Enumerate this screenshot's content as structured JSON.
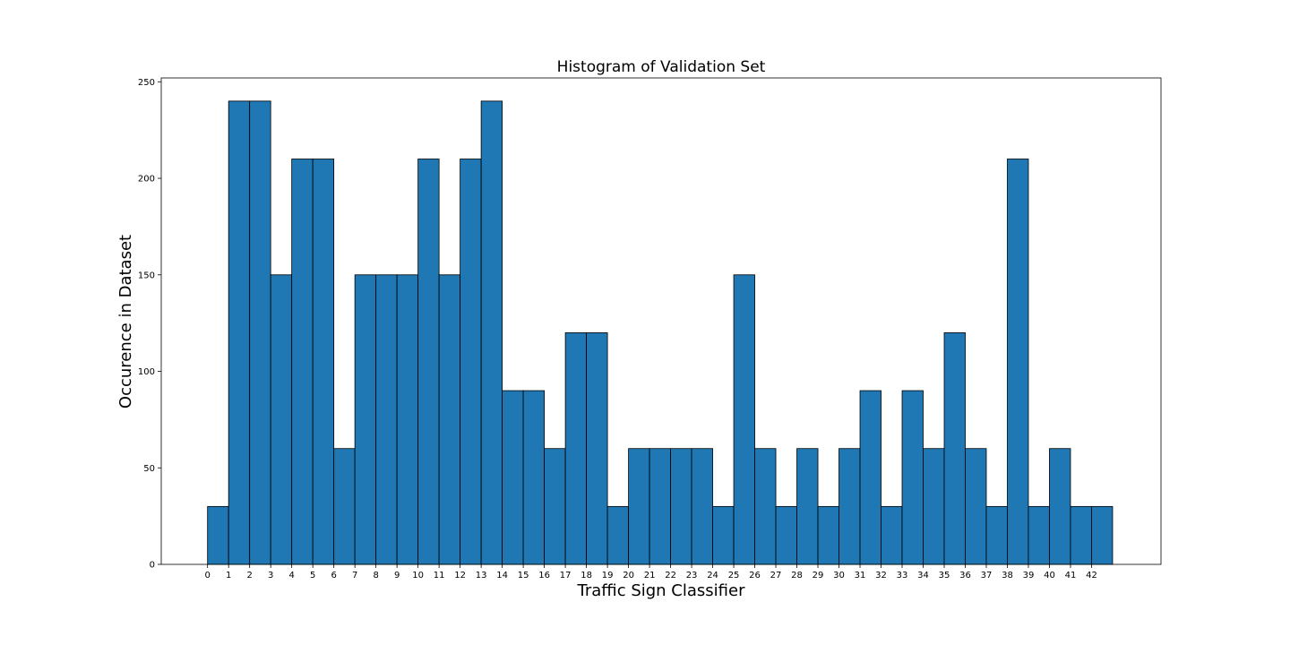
{
  "chart_data": {
    "type": "bar",
    "title": "Histogram of Validation Set",
    "xlabel": "Traffic Sign Classifier",
    "ylabel": "Occurence in Dataset",
    "categories": [
      "0",
      "1",
      "2",
      "3",
      "4",
      "5",
      "6",
      "7",
      "8",
      "9",
      "10",
      "11",
      "12",
      "13",
      "14",
      "15",
      "16",
      "17",
      "18",
      "19",
      "20",
      "21",
      "22",
      "23",
      "24",
      "25",
      "26",
      "27",
      "28",
      "29",
      "30",
      "31",
      "32",
      "33",
      "34",
      "35",
      "36",
      "37",
      "38",
      "39",
      "40",
      "41",
      "42"
    ],
    "values": [
      30,
      240,
      240,
      150,
      210,
      210,
      60,
      150,
      150,
      150,
      210,
      150,
      210,
      240,
      90,
      90,
      60,
      120,
      120,
      30,
      60,
      60,
      60,
      60,
      30,
      150,
      60,
      30,
      60,
      30,
      60,
      90,
      30,
      90,
      60,
      120,
      60,
      30,
      210,
      30,
      60,
      30,
      30
    ],
    "x_ticks": [
      0,
      1,
      2,
      3,
      4,
      5,
      6,
      7,
      8,
      9,
      10,
      11,
      12,
      13,
      14,
      15,
      16,
      17,
      18,
      19,
      20,
      21,
      22,
      23,
      24,
      25,
      26,
      27,
      28,
      29,
      30,
      31,
      32,
      33,
      34,
      35,
      36,
      37,
      38,
      39,
      40,
      41,
      42
    ],
    "y_ticks": [
      0,
      50,
      100,
      150,
      200,
      250
    ],
    "xlim": [
      -2.2,
      45.3
    ],
    "ylim": [
      0,
      252
    ],
    "bar_color": "#1f77b4",
    "edge_color": "#000000",
    "grid": false,
    "legend": "none"
  }
}
